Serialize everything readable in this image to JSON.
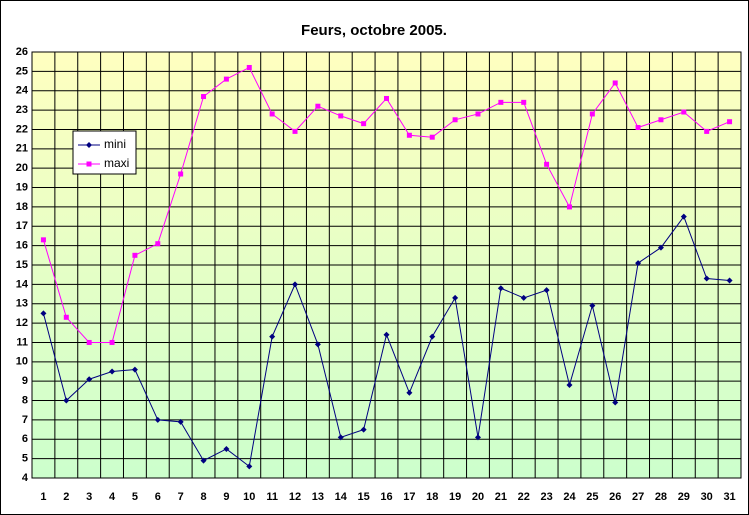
{
  "chart_data": {
    "type": "line",
    "title": "Feurs, octobre 2005.",
    "categories": [
      "1",
      "2",
      "3",
      "4",
      "5",
      "6",
      "7",
      "8",
      "9",
      "10",
      "11",
      "12",
      "13",
      "14",
      "15",
      "16",
      "17",
      "18",
      "19",
      "20",
      "21",
      "22",
      "23",
      "24",
      "25",
      "26",
      "27",
      "28",
      "29",
      "30",
      "31"
    ],
    "series": [
      {
        "name": "mini",
        "color": "#000080",
        "values": [
          12.5,
          8.0,
          9.1,
          9.5,
          9.6,
          7.0,
          6.9,
          4.9,
          5.5,
          4.6,
          11.3,
          14.0,
          10.9,
          6.1,
          6.5,
          11.4,
          8.4,
          11.3,
          13.3,
          6.1,
          13.8,
          13.3,
          13.7,
          8.8,
          12.9,
          7.9,
          15.1,
          15.9,
          17.5,
          14.3,
          14.2
        ]
      },
      {
        "name": "maxi",
        "color": "#ff00ff",
        "values": [
          16.3,
          12.3,
          11.0,
          11.0,
          15.5,
          16.1,
          19.7,
          23.7,
          24.6,
          25.2,
          22.8,
          21.9,
          23.2,
          22.7,
          22.3,
          23.6,
          21.7,
          21.6,
          22.5,
          22.8,
          23.4,
          23.4,
          20.2,
          18.0,
          22.8,
          24.4,
          22.1,
          22.5,
          22.9,
          21.9,
          22.4
        ]
      }
    ],
    "ylim": [
      4,
      26
    ],
    "yticks": [
      4,
      5,
      6,
      7,
      8,
      9,
      10,
      11,
      12,
      13,
      14,
      15,
      16,
      17,
      18,
      19,
      20,
      21,
      22,
      23,
      24,
      25,
      26
    ],
    "grid": true,
    "legend": "left"
  }
}
